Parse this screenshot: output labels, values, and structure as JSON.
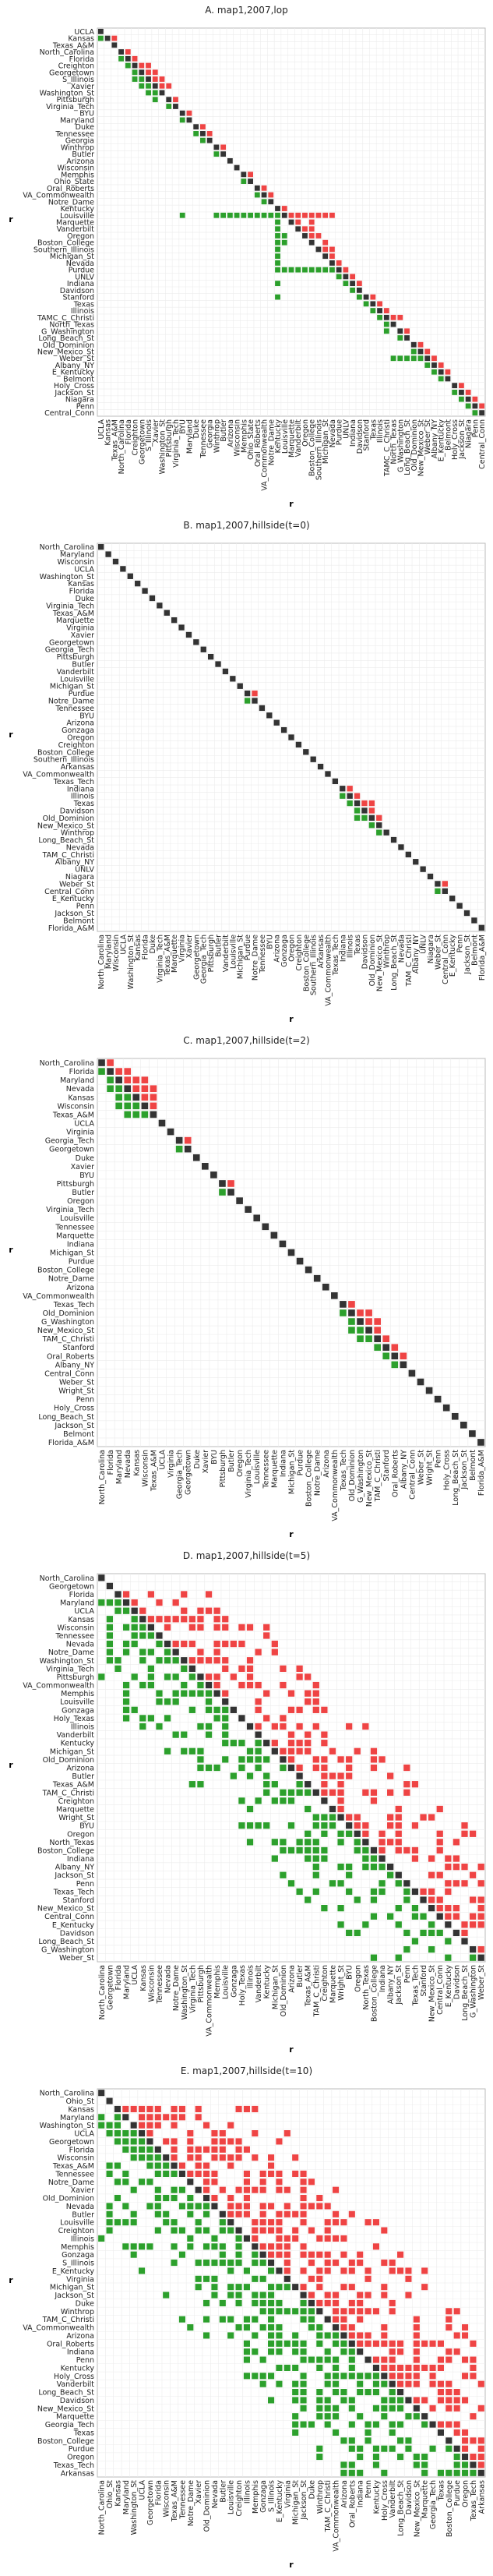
{
  "colors": {
    "diag": "#333333",
    "upper": "#ef4444",
    "lower": "#2ca02c",
    "frame": "#bbbbbb"
  },
  "chart_data": [
    {
      "type": "heatmap",
      "title": "A. map1,2007,lop",
      "xlabel": "r",
      "ylabel": "r",
      "grid": true,
      "labels": [
        "UCLA",
        "Kansas",
        "Texas_A&M",
        "North_Carolina",
        "Florida",
        "Creighton",
        "Georgetown",
        "S_Illinois",
        "Xavier",
        "Washington_St",
        "Pittsburgh",
        "Virginia_Tech",
        "BYU",
        "Maryland",
        "Duke",
        "Tennessee",
        "Georgia",
        "Winthrop",
        "Butler",
        "Arizona",
        "Wisconsin",
        "Memphis",
        "Ohio_State",
        "Oral_Roberts",
        "VA_Commonwealth",
        "Notre_Dame",
        "Kentucky",
        "Louisville",
        "Marquette",
        "Vanderbilt",
        "Oregon",
        "Boston_College",
        "Southern_Illinois",
        "Michigan_St",
        "Nevada",
        "Purdue",
        "UNLV",
        "Indiana",
        "Davidson",
        "Stanford",
        "Texas",
        "Illinois",
        "TAMC_C_Christi",
        "North_Texas",
        "G_Washington",
        "Long_Beach_St",
        "Old_Dominion",
        "New_Mexico_St",
        "Weber_St",
        "Albany_NY",
        "E_Kentucky",
        "Belmont",
        "Holy_Cross",
        "Jackson_St",
        "Niagara",
        "Penn",
        "Central_Conn"
      ],
      "upper_cells": [
        [
          1,
          2
        ],
        [
          3,
          4
        ],
        [
          4,
          5
        ],
        [
          5,
          6
        ],
        [
          5,
          7
        ],
        [
          6,
          7
        ],
        [
          6,
          8
        ],
        [
          7,
          8
        ],
        [
          7,
          9
        ],
        [
          8,
          9
        ],
        [
          8,
          10
        ],
        [
          10,
          11
        ],
        [
          12,
          13
        ],
        [
          14,
          15
        ],
        [
          15,
          16
        ],
        [
          17,
          18
        ],
        [
          21,
          22
        ],
        [
          23,
          24
        ],
        [
          24,
          25
        ],
        [
          26,
          27
        ],
        [
          27,
          28
        ],
        [
          27,
          29
        ],
        [
          27,
          30
        ],
        [
          27,
          31
        ],
        [
          27,
          32
        ],
        [
          27,
          33
        ],
        [
          27,
          34
        ],
        [
          28,
          29
        ],
        [
          28,
          31
        ],
        [
          29,
          30
        ],
        [
          29,
          31
        ],
        [
          30,
          31
        ],
        [
          30,
          32
        ],
        [
          31,
          33
        ],
        [
          32,
          33
        ],
        [
          32,
          34
        ],
        [
          33,
          34
        ],
        [
          34,
          35
        ],
        [
          35,
          36
        ],
        [
          36,
          37
        ],
        [
          37,
          38
        ],
        [
          39,
          40
        ],
        [
          40,
          41
        ],
        [
          41,
          42
        ],
        [
          42,
          43
        ],
        [
          42,
          44
        ],
        [
          44,
          45
        ],
        [
          46,
          47
        ],
        [
          47,
          48
        ],
        [
          48,
          49
        ],
        [
          49,
          50
        ],
        [
          50,
          51
        ],
        [
          52,
          53
        ],
        [
          53,
          54
        ],
        [
          54,
          55
        ],
        [
          55,
          56
        ]
      ],
      "lower_cells": [
        [
          1,
          0
        ],
        [
          4,
          3
        ],
        [
          5,
          4
        ],
        [
          6,
          5
        ],
        [
          7,
          5
        ],
        [
          7,
          6
        ],
        [
          8,
          6
        ],
        [
          8,
          7
        ],
        [
          9,
          7
        ],
        [
          9,
          8
        ],
        [
          10,
          8
        ],
        [
          11,
          10
        ],
        [
          13,
          12
        ],
        [
          15,
          14
        ],
        [
          16,
          15
        ],
        [
          18,
          17
        ],
        [
          22,
          21
        ],
        [
          24,
          23
        ],
        [
          25,
          24
        ],
        [
          27,
          12
        ],
        [
          27,
          17
        ],
        [
          27,
          18
        ],
        [
          27,
          19
        ],
        [
          27,
          20
        ],
        [
          27,
          21
        ],
        [
          27,
          22
        ],
        [
          27,
          23
        ],
        [
          27,
          24
        ],
        [
          27,
          25
        ],
        [
          27,
          26
        ],
        [
          28,
          26
        ],
        [
          29,
          26
        ],
        [
          30,
          26
        ],
        [
          30,
          27
        ],
        [
          31,
          26
        ],
        [
          31,
          27
        ],
        [
          32,
          26
        ],
        [
          33,
          26
        ],
        [
          34,
          26
        ],
        [
          35,
          26
        ],
        [
          35,
          27
        ],
        [
          35,
          28
        ],
        [
          35,
          29
        ],
        [
          35,
          30
        ],
        [
          35,
          31
        ],
        [
          35,
          32
        ],
        [
          35,
          33
        ],
        [
          35,
          34
        ],
        [
          36,
          35
        ],
        [
          37,
          26
        ],
        [
          37,
          36
        ],
        [
          38,
          37
        ],
        [
          39,
          26
        ],
        [
          39,
          38
        ],
        [
          40,
          39
        ],
        [
          41,
          40
        ],
        [
          42,
          41
        ],
        [
          43,
          42
        ],
        [
          44,
          42
        ],
        [
          45,
          44
        ],
        [
          47,
          46
        ],
        [
          48,
          46
        ],
        [
          48,
          47
        ],
        [
          48,
          43
        ],
        [
          48,
          44
        ],
        [
          48,
          45
        ],
        [
          49,
          48
        ],
        [
          50,
          49
        ],
        [
          51,
          50
        ],
        [
          53,
          52
        ],
        [
          54,
          53
        ],
        [
          55,
          54
        ],
        [
          56,
          55
        ]
      ]
    },
    {
      "type": "heatmap",
      "title": "B. map1,2007,hillside(t=0)",
      "xlabel": "r",
      "ylabel": "r",
      "grid": true,
      "labels": [
        "North_Carolina",
        "Maryland",
        "Wisconsin",
        "UCLA",
        "Washington_St",
        "Kansas",
        "Florida",
        "Duke",
        "Virginia_Tech",
        "Texas_A&M",
        "Marquette",
        "Virginia",
        "Xavier",
        "Georgetown",
        "Georgia_Tech",
        "Pittsburgh",
        "Butler",
        "Vanderbilt",
        "Louisville",
        "Michigan_St",
        "Purdue",
        "Notre_Dame",
        "Tennessee",
        "BYU",
        "Arizona",
        "Gonzaga",
        "Oregon",
        "Creighton",
        "Boston_College",
        "Southern_Illinois",
        "Arkansas",
        "VA_Commonwealth",
        "Texas_Tech",
        "Indiana",
        "Illinois",
        "Texas",
        "Davidson",
        "Old_Dominion",
        "New_Mexico_St",
        "Winthrop",
        "Long_Beach_St",
        "Nevada",
        "TAM_C_Christi",
        "Albany_NY",
        "UNLV",
        "Niagara",
        "Weber_St",
        "Central_Conn",
        "E_Kentucky",
        "Penn",
        "Jackson_St",
        "Belmont",
        "Florida_A&M"
      ],
      "upper_cells": [
        [
          20,
          21
        ],
        [
          33,
          34
        ],
        [
          34,
          35
        ],
        [
          35,
          36
        ],
        [
          35,
          37
        ],
        [
          36,
          37
        ],
        [
          37,
          38
        ],
        [
          46,
          47
        ]
      ],
      "lower_cells": [
        [
          21,
          20
        ],
        [
          34,
          33
        ],
        [
          35,
          34
        ],
        [
          36,
          35
        ],
        [
          37,
          35
        ],
        [
          37,
          36
        ],
        [
          38,
          37
        ],
        [
          39,
          38
        ],
        [
          47,
          46
        ]
      ]
    },
    {
      "type": "heatmap",
      "title": "C. map1,2007,hillside(t=2)",
      "xlabel": "r",
      "ylabel": "r",
      "grid": true,
      "labels": [
        "North_Carolina",
        "Florida",
        "Maryland",
        "Nevada",
        "Kansas",
        "Wisconsin",
        "Texas_A&M",
        "UCLA",
        "Virginia",
        "Georgia_Tech",
        "Georgetown",
        "Duke",
        "Xavier",
        "BYU",
        "Pittsburgh",
        "Butler",
        "Oregon",
        "Virginia_Tech",
        "Louisville",
        "Tennessee",
        "Marquette",
        "Indiana",
        "Michigan_St",
        "Purdue",
        "Boston_College",
        "Notre_Dame",
        "Arizona",
        "VA_Commonwealth",
        "Texas_Tech",
        "Old_Dominion",
        "G_Washington",
        "New_Mexico_St",
        "TAM_C_Christi",
        "Stanford",
        "Oral_Roberts",
        "Albany_NY",
        "Central_Conn",
        "Weber_St",
        "Wright_St",
        "Penn",
        "Holy_Cross",
        "Long_Beach_St",
        "Jackson_St",
        "Belmont",
        "Florida_A&M"
      ],
      "upper_cells": [
        [
          0,
          1
        ],
        [
          1,
          2
        ],
        [
          1,
          3
        ],
        [
          2,
          3
        ],
        [
          2,
          4
        ],
        [
          2,
          5
        ],
        [
          3,
          4
        ],
        [
          3,
          5
        ],
        [
          3,
          6
        ],
        [
          4,
          5
        ],
        [
          4,
          6
        ],
        [
          5,
          6
        ],
        [
          9,
          10
        ],
        [
          14,
          15
        ],
        [
          28,
          29
        ],
        [
          29,
          30
        ],
        [
          29,
          31
        ],
        [
          30,
          31
        ],
        [
          30,
          32
        ],
        [
          31,
          32
        ],
        [
          32,
          33
        ],
        [
          33,
          34
        ],
        [
          34,
          35
        ]
      ],
      "lower_cells": [
        [
          1,
          0
        ],
        [
          2,
          1
        ],
        [
          3,
          1
        ],
        [
          3,
          2
        ],
        [
          4,
          2
        ],
        [
          5,
          2
        ],
        [
          4,
          3
        ],
        [
          5,
          3
        ],
        [
          6,
          3
        ],
        [
          5,
          4
        ],
        [
          6,
          4
        ],
        [
          6,
          5
        ],
        [
          10,
          9
        ],
        [
          15,
          14
        ],
        [
          29,
          28
        ],
        [
          30,
          29
        ],
        [
          31,
          29
        ],
        [
          31,
          30
        ],
        [
          32,
          30
        ],
        [
          32,
          31
        ],
        [
          33,
          32
        ],
        [
          34,
          33
        ],
        [
          35,
          34
        ]
      ]
    },
    {
      "type": "heatmap",
      "title": "D. map1,2007,hillside(t=5)",
      "xlabel": "r",
      "ylabel": "r",
      "grid": true,
      "labels": [
        "North_Carolina",
        "Georgetown",
        "Florida",
        "Maryland",
        "UCLA",
        "Kansas",
        "Wisconsin",
        "Tennessee",
        "Nevada",
        "Notre_Dame",
        "Washington_St",
        "Virginia_Tech",
        "Pittsburgh",
        "VA_Commonwealth",
        "Memphis",
        "Louisville",
        "Gonzaga",
        "Holy_Texas",
        "Illinois",
        "Vanderbilt",
        "Kentucky",
        "Michigan_St",
        "Old_Dominion",
        "Arizona",
        "Butler",
        "Texas_A&M",
        "TAM_C_Christi",
        "Creighton",
        "Marquette",
        "Wright_St",
        "BYU",
        "Oregon",
        "North_Texas",
        "Boston_College",
        "Indiana",
        "Albany_NY",
        "Jackson_St",
        "Penn",
        "Texas_Tech",
        "Stanford",
        "New_Mexico_St",
        "Central_Conn",
        "E_Kentucky",
        "Davidson",
        "Long_Beach_St",
        "G_Washington",
        "Weber_St"
      ],
      "density": 0.45,
      "band": 14
    },
    {
      "type": "heatmap",
      "title": "E. map1,2007,hillside(t=10)",
      "xlabel": "r",
      "ylabel": "r",
      "grid": true,
      "labels": [
        "North_Carolina",
        "Ohio_St",
        "Kansas",
        "Maryland",
        "Washington_St",
        "UCLA",
        "Georgetown",
        "Florida",
        "Wisconsin",
        "Texas_A&M",
        "Tennessee",
        "Notre_Dame",
        "Xavier",
        "Old_Dominion",
        "Nevada",
        "Butler",
        "Louisville",
        "Creighton",
        "Illinois",
        "Memphis",
        "Gonzaga",
        "S_Illinois",
        "E_Kentucky",
        "Virginia",
        "Michigan_St",
        "Jackson_St",
        "Duke",
        "Winthrop",
        "TAM_C_Christi",
        "VA_Commonwealth",
        "Arizona",
        "Oral_Roberts",
        "Indiana",
        "Penn",
        "Kentucky",
        "Holy_Cross",
        "Vanderbilt",
        "Long_Beach_St",
        "Davidson",
        "New_Mexico_St",
        "Marquette",
        "Georgia_Tech",
        "Texas",
        "Boston_College",
        "Purdue",
        "Oregon",
        "Texas_Tech",
        "Arkansas"
      ],
      "density": 0.5,
      "band": 18
    }
  ]
}
